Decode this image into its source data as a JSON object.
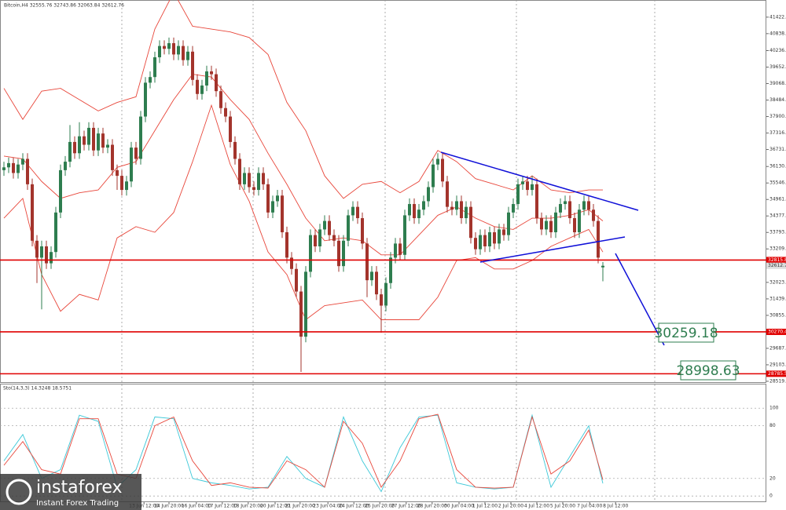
{
  "chart_data": {
    "type": "candlestick",
    "title": "Bitcoin,H4 32555.76 32743.86 32063.84 32612.76",
    "ylim": [
      28490,
      42030
    ],
    "yticks": [
      41422.44,
      {
        "value": 40838.3,
        "label": "40838.30"
      },
      {
        "value": 40236.5,
        "label": "40236.50"
      },
      {
        "value": 39652,
        "label": "39652.00"
      },
      {
        "value": 39068.3,
        "label": "39068.30"
      },
      {
        "value": 38484.2,
        "label": "38484.20"
      },
      {
        "value": 37900.1,
        "label": "37900.10"
      },
      {
        "value": 37316,
        "label": "37316.00"
      },
      {
        "value": 36731.9,
        "label": "36731.90"
      },
      {
        "value": 36130.1,
        "label": "36130.10"
      },
      {
        "value": 35546,
        "label": "35546.00"
      },
      {
        "value": 34961.9,
        "label": "34961.90"
      },
      {
        "value": 34377.8,
        "label": "34377.80"
      },
      {
        "value": 33793.7,
        "label": "33793.70"
      },
      {
        "value": 33209.6,
        "label": "33209.60"
      },
      {
        "value": 32023.7,
        "label": "32023.70"
      },
      {
        "value": 31439.6,
        "label": "31439.60"
      },
      {
        "value": 30855.5,
        "label": "30855.50"
      },
      {
        "value": 29687.3,
        "label": "29687.30"
      },
      {
        "value": 29103.2,
        "label": "29103.20"
      },
      {
        "value": 28519.1,
        "label": "28519.10"
      }
    ],
    "xticks": [
      {
        "value": 29.7,
        "label": "13 Jun 12:00"
      },
      {
        "value": 35,
        "label": "14 Jun 20:00"
      },
      {
        "value": 40.8,
        "label": "16 Jun 04:00"
      },
      {
        "value": 46.3,
        "label": "17 Jun 12:00"
      },
      {
        "value": 51.8,
        "label": "18 Jun 20:00"
      },
      {
        "value": 57.5,
        "label": "20 Jun 12:00"
      },
      {
        "value": 62.8,
        "label": "21 Jun 20:00"
      },
      {
        "value": 68.7,
        "label": "23 Jun 04:00"
      },
      {
        "value": 74.2,
        "label": "24 Jun 12:00"
      },
      {
        "value": 79.7,
        "label": "25 Jun 20:00"
      },
      {
        "value": 85.3,
        "label": "27 Jun 12:00"
      },
      {
        "value": 90.8,
        "label": "28 Jun 20:00"
      },
      {
        "value": 96.5,
        "label": "30 Jun 04:00"
      },
      {
        "value": 102,
        "label": "1 Jul 12:00"
      },
      {
        "value": 107.5,
        "label": "2 Jul 20:00"
      },
      {
        "value": 113,
        "label": "4 Jul 12:00"
      },
      {
        "value": 118.5,
        "label": "5 Jul 20:00"
      },
      {
        "value": 124.2,
        "label": "7 Jul 04:00"
      },
      {
        "value": 129.7,
        "label": "8 Jul 12:00"
      }
    ],
    "up_color": "#2e7d4f",
    "down_color": "#a3342c",
    "ohlc": {
      "open": [
        36000,
        36100,
        36250,
        35900,
        36200,
        36400,
        35500,
        33500,
        32900,
        33300,
        32700,
        33100,
        34500,
        36000,
        36300,
        37000,
        36600,
        37200,
        36900,
        37500,
        36700,
        37300,
        36800,
        36900,
        36000,
        35800,
        35300,
        35600,
        36800,
        36400,
        37900,
        39100,
        39300,
        40000,
        40400,
        40300,
        40500,
        40100,
        40400,
        39900,
        40200,
        39200,
        38700,
        39000,
        39500,
        39400,
        38800,
        38200,
        37900,
        37000,
        36400,
        35500,
        35900,
        35400,
        35300,
        35900,
        35500,
        34500,
        34900,
        35100,
        33800,
        32900,
        32500,
        31700,
        30100,
        32400,
        33700,
        33300,
        33900,
        34200,
        33700,
        33500,
        32600,
        33500,
        34400,
        34700,
        34300,
        33400,
        32100,
        32400,
        31600,
        31200,
        32000,
        32900,
        33400,
        33000,
        34400,
        34800,
        34300,
        34600,
        34900,
        35400,
        36200,
        36400,
        35600,
        34700,
        34600,
        34900,
        34300,
        34700,
        33600,
        33200,
        33700,
        33300,
        33800,
        33400,
        33900,
        33700,
        34500,
        34800,
        35500,
        35600,
        35300,
        35500,
        34300,
        33900,
        34200,
        33800,
        34500,
        34800,
        34900,
        34300,
        33800,
        34600,
        34900,
        34600,
        34200,
        32555.76
      ],
      "high": [
        36300,
        36450,
        36450,
        36400,
        36600,
        36600,
        35700,
        33700,
        33500,
        33500,
        33300,
        34700,
        36200,
        36500,
        37600,
        37200,
        37700,
        37400,
        37700,
        37700,
        37500,
        37500,
        37100,
        37100,
        36200,
        36000,
        35800,
        37000,
        37000,
        38100,
        39300,
        39500,
        40200,
        40600,
        40600,
        40700,
        40700,
        40600,
        40600,
        40400,
        40400,
        39400,
        39200,
        39700,
        39700,
        39600,
        39000,
        38400,
        38100,
        37200,
        36600,
        36100,
        36100,
        35600,
        36100,
        36100,
        35700,
        35100,
        35300,
        35300,
        34000,
        33100,
        32700,
        31900,
        32600,
        33900,
        33900,
        34100,
        34400,
        34400,
        33900,
        33700,
        33700,
        34600,
        34900,
        34900,
        34500,
        33600,
        32600,
        32600,
        31800,
        32200,
        33100,
        33600,
        33600,
        34600,
        35000,
        35000,
        34800,
        35100,
        35600,
        36400,
        36600,
        36600,
        35800,
        34900,
        35100,
        35100,
        34900,
        34900,
        33800,
        33900,
        33900,
        34000,
        34000,
        34100,
        34100,
        34700,
        35000,
        35700,
        35800,
        35800,
        35800,
        35700,
        34500,
        34400,
        34400,
        34700,
        35000,
        35100,
        35100,
        34500,
        34800,
        35100,
        35100,
        34800,
        34400,
        32743.86
      ],
      "low": [
        35800,
        35900,
        35700,
        35700,
        36000,
        35300,
        33300,
        32000,
        31070,
        32500,
        32500,
        32900,
        34300,
        35800,
        36100,
        36400,
        36400,
        36700,
        36700,
        36500,
        36500,
        36600,
        36600,
        35800,
        35300,
        35100,
        35100,
        35400,
        36200,
        36200,
        37700,
        38900,
        39100,
        39800,
        40100,
        40100,
        39900,
        39900,
        39700,
        39700,
        39000,
        38500,
        38500,
        38800,
        39200,
        38600,
        38000,
        37700,
        36800,
        36200,
        35300,
        35300,
        35200,
        35100,
        35100,
        35300,
        34300,
        34300,
        34700,
        33600,
        32700,
        32300,
        31500,
        28853,
        29900,
        32200,
        33100,
        33100,
        33700,
        33500,
        33300,
        32400,
        32400,
        33300,
        34200,
        34100,
        33200,
        31500,
        31900,
        31400,
        30240,
        31000,
        31800,
        32700,
        32800,
        32800,
        34200,
        34100,
        34100,
        34400,
        34700,
        35200,
        36000,
        35400,
        34500,
        34400,
        34400,
        34100,
        34100,
        33400,
        33000,
        33000,
        33100,
        33100,
        33200,
        33200,
        33500,
        33500,
        34300,
        34600,
        35300,
        35100,
        35100,
        34100,
        33700,
        33700,
        33600,
        33600,
        34300,
        34600,
        34100,
        33600,
        33600,
        34400,
        34400,
        34000,
        32700,
        32063.84
      ],
      "close": [
        36100,
        36250,
        35900,
        36200,
        36400,
        35500,
        33500,
        32900,
        33300,
        32700,
        33100,
        34500,
        36000,
        36300,
        37000,
        36600,
        37200,
        36900,
        37500,
        36700,
        37300,
        36800,
        36900,
        36000,
        35800,
        35300,
        35600,
        36800,
        36400,
        37900,
        39100,
        39300,
        40000,
        40400,
        40300,
        40500,
        40100,
        40400,
        39900,
        40200,
        39200,
        38700,
        39000,
        39500,
        39400,
        38800,
        38200,
        37900,
        37000,
        36400,
        35500,
        35900,
        35400,
        35300,
        35900,
        35500,
        34500,
        34900,
        35100,
        33800,
        32900,
        32500,
        31700,
        30100,
        32400,
        33700,
        33300,
        33900,
        34200,
        33700,
        33500,
        32600,
        33500,
        34400,
        34700,
        34300,
        33400,
        32100,
        32400,
        31600,
        31200,
        32000,
        32900,
        33400,
        33000,
        34400,
        34800,
        34300,
        34600,
        34900,
        35400,
        36200,
        36400,
        35600,
        34700,
        34600,
        34900,
        34300,
        34700,
        33600,
        33200,
        33700,
        33300,
        33800,
        33400,
        33900,
        33700,
        34500,
        34800,
        35500,
        35600,
        35300,
        35500,
        34300,
        33900,
        34200,
        33800,
        34500,
        34800,
        34900,
        34300,
        33800,
        34600,
        34900,
        34600,
        34200,
        32900,
        32612.76
      ]
    },
    "bollinger": {
      "color": "#e8463a",
      "x": [
        0,
        4,
        8,
        12,
        16,
        20,
        24,
        28,
        32,
        36,
        40,
        44,
        48,
        52,
        56,
        60,
        64,
        68,
        72,
        76,
        80,
        84,
        88,
        92,
        96,
        100,
        104,
        108,
        112,
        116,
        120,
        124,
        127
      ],
      "upper": [
        38900,
        37800,
        38800,
        38900,
        38500,
        38100,
        38400,
        38600,
        41000,
        42300,
        41100,
        41000,
        40900,
        40700,
        40100,
        38400,
        37400,
        35800,
        35000,
        35500,
        35600,
        35200,
        35600,
        36700,
        36300,
        35700,
        35500,
        35300,
        35800,
        35300,
        35200,
        35300,
        35300
      ],
      "middle": [
        36500,
        36400,
        35600,
        35000,
        35200,
        35300,
        36100,
        36300,
        37400,
        38500,
        39400,
        39300,
        38500,
        37800,
        36600,
        35500,
        34300,
        33500,
        33600,
        33500,
        33000,
        33000,
        33700,
        34400,
        34700,
        34300,
        34000,
        33900,
        34300,
        34300,
        34400,
        34600,
        34200
      ],
      "lower": [
        34300,
        35000,
        32300,
        31000,
        31600,
        31400,
        33600,
        34000,
        33800,
        34500,
        36300,
        38300,
        36200,
        34900,
        33100,
        32300,
        30700,
        31200,
        31300,
        31400,
        30700,
        30700,
        30700,
        31500,
        32800,
        32900,
        32500,
        32500,
        32800,
        33300,
        33600,
        33900,
        33100
      ]
    },
    "levels": [
      {
        "value": 32815.8,
        "label": "32815.80"
      },
      {
        "value": 30270.45,
        "label": "30270.45"
      },
      {
        "value": 28785.58,
        "label": "28785.58"
      }
    ],
    "level_color": "#e00000",
    "last_price": 32612.76,
    "annotations": [
      "30259.18",
      "28998.63"
    ],
    "stochastic": {
      "title": "Sto(14,3,3) 14.3248 18.5751",
      "ylim": [
        -7,
        127
      ],
      "yticks": [
        0,
        20,
        80,
        100
      ],
      "x": [
        0,
        4,
        8,
        12,
        16,
        20,
        24,
        28,
        32,
        36,
        40,
        44,
        48,
        52,
        56,
        60,
        64,
        68,
        72,
        76,
        80,
        84,
        88,
        92,
        96,
        100,
        104,
        108,
        112,
        116,
        120,
        124,
        127
      ],
      "k": [
        40,
        70,
        20,
        30,
        92,
        85,
        10,
        30,
        90,
        88,
        20,
        15,
        12,
        8,
        10,
        45,
        20,
        10,
        90,
        40,
        5,
        55,
        90,
        92,
        15,
        10,
        8,
        10,
        92,
        10,
        45,
        80,
        14.3248
      ],
      "d": [
        35,
        62,
        30,
        25,
        88,
        88,
        25,
        20,
        80,
        90,
        40,
        12,
        15,
        10,
        9,
        40,
        30,
        10,
        85,
        60,
        10,
        40,
        88,
        93,
        30,
        10,
        9,
        10,
        90,
        25,
        40,
        75,
        18.5751
      ],
      "k_color": "#3cc8d8",
      "d_color": "#e8463a"
    }
  },
  "watermark": {
    "name": "instaforex",
    "tagline": "Instant Forex Trading"
  }
}
